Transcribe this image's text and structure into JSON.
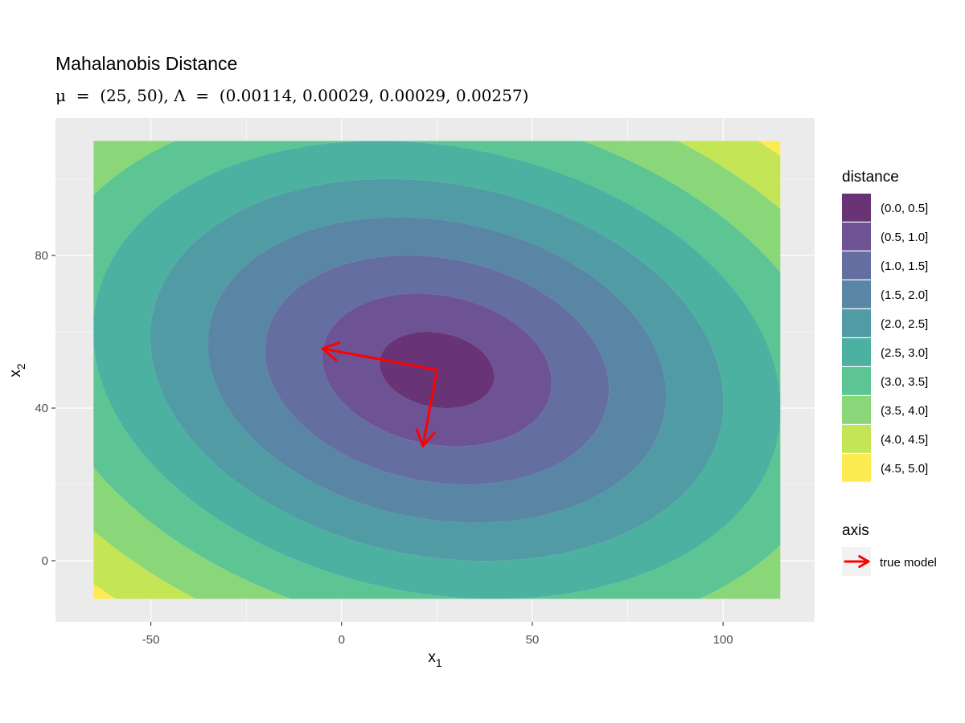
{
  "chart_data": {
    "type": "contour",
    "title": "Mahalanobis Distance",
    "subtitle": "μ = (25, 50), Λ = (0.00114, 0.00029, 0.00029, 0.00257)",
    "subtitle_parts": {
      "mu_symbol": "μ",
      "eq": " = ",
      "mu_value": "(25, 50), ",
      "lambda_symbol": "Λ",
      "lambda_value": "(0.00114, 0.00029, 0.00029, 0.00257)"
    },
    "xlabel": {
      "base": "x",
      "sub": "1"
    },
    "ylabel": {
      "base": "x",
      "sub": "2"
    },
    "xlim": [
      -75,
      124
    ],
    "ylim": [
      -16,
      116
    ],
    "x_ticks": [
      -50,
      0,
      50,
      100
    ],
    "y_ticks": [
      0,
      40,
      80
    ],
    "x_minor": [
      -25,
      25,
      75
    ],
    "y_minor": [
      20,
      60,
      100
    ],
    "grid": true,
    "x_range": [
      -65,
      115
    ],
    "y_range": [
      -10,
      110
    ],
    "mean": [
      25,
      50
    ],
    "precision_matrix": [
      0.00114,
      0.00029,
      0.00029,
      0.00257
    ],
    "distance_levels": [
      0,
      0.5,
      1.0,
      1.5,
      2.0,
      2.5,
      3.0,
      3.5,
      4.0,
      4.5,
      5.0
    ],
    "legend_distance": {
      "title": "distance",
      "entries": [
        "(0.0, 0.5]",
        "(0.5, 1.0]",
        "(1.0, 1.5]",
        "(1.5, 2.0]",
        "(2.0, 2.5]",
        "(2.5, 3.0]",
        "(3.0, 3.5]",
        "(3.5, 4.0]",
        "(4.0, 4.5]",
        "(4.5, 5.0]"
      ],
      "colors": [
        "#440154",
        "#482878",
        "#3E4A89",
        "#31688E",
        "#26828E",
        "#1F9E89",
        "#35B779",
        "#6DCD59",
        "#B4DE2C",
        "#FDE725"
      ],
      "alpha": 0.8,
      "placement": "right"
    },
    "legend_axis": {
      "title": "axis",
      "entries": [
        "true model"
      ],
      "color": "#FF0000"
    },
    "arrows": [
      {
        "name": "true model",
        "from": [
          25,
          50
        ],
        "to": [
          -5,
          55.6
        ]
      },
      {
        "name": "true model",
        "from": [
          25,
          50
        ],
        "to": [
          21.3,
          30
        ]
      }
    ]
  }
}
